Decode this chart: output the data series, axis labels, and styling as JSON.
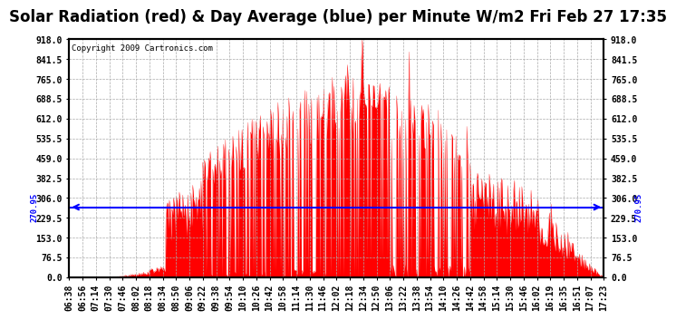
{
  "title": "Solar Radiation (red) & Day Average (blue) per Minute W/m2 Fri Feb 27 17:35",
  "copyright": "Copyright 2009 Cartronics.com",
  "ymin": 0.0,
  "ymax": 918.0,
  "yticks": [
    0.0,
    76.5,
    153.0,
    229.5,
    306.0,
    382.5,
    459.0,
    535.5,
    612.0,
    688.5,
    765.0,
    841.5,
    918.0
  ],
  "day_average": 270.95,
  "day_average_label": "270.95",
  "fill_color": "#ff0000",
  "line_color": "#0000ff",
  "background_color": "#ffffff",
  "grid_color": "#aaaaaa",
  "xtick_labels": [
    "06:38",
    "06:56",
    "07:14",
    "07:30",
    "07:46",
    "08:02",
    "08:18",
    "08:34",
    "08:50",
    "09:06",
    "09:22",
    "09:38",
    "09:54",
    "10:10",
    "10:26",
    "10:42",
    "10:58",
    "11:14",
    "11:30",
    "11:46",
    "12:02",
    "12:18",
    "12:34",
    "12:50",
    "13:06",
    "13:22",
    "13:38",
    "13:54",
    "14:10",
    "14:26",
    "14:42",
    "14:58",
    "15:14",
    "15:30",
    "15:46",
    "16:02",
    "16:19",
    "16:35",
    "16:51",
    "17:07",
    "17:23"
  ],
  "title_fontsize": 12,
  "tick_fontsize": 7,
  "copyright_fontsize": 6.5
}
